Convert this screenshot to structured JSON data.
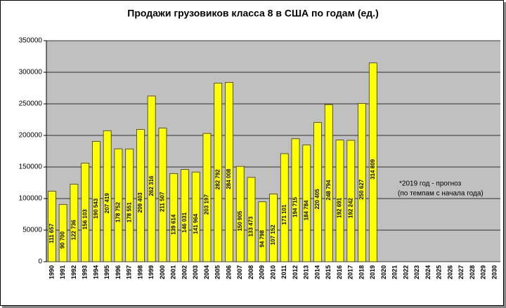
{
  "chart_data": {
    "type": "bar",
    "title": "Продажи грузовиков класса 8 в США по годам (ед.)",
    "categories": [
      "1990",
      "1991",
      "1992",
      "1993",
      "1994",
      "1995",
      "1996",
      "1997",
      "1998",
      "1999",
      "2000",
      "2001",
      "2002",
      "2003",
      "2004",
      "2005",
      "2006",
      "2007",
      "2008",
      "2009",
      "2010",
      "2011",
      "2012",
      "2013",
      "2014",
      "2015",
      "2016",
      "2017",
      "2018",
      "2019",
      "2020",
      "2021",
      "2022",
      "2023",
      "2024",
      "2025",
      "2026",
      "2027",
      "2028",
      "2029",
      "2030"
    ],
    "values": [
      111657,
      90700,
      122736,
      156103,
      190543,
      207419,
      178752,
      178551,
      209403,
      262316,
      211507,
      139614,
      146031,
      141964,
      203197,
      282792,
      284008,
      150905,
      133473,
      94798,
      107152,
      171101,
      194715,
      184784,
      220405,
      248794,
      192691,
      192242,
      250627,
      314809,
      null,
      null,
      null,
      null,
      null,
      null,
      null,
      null,
      null,
      null,
      null
    ],
    "value_labels": [
      "111 657",
      "90 700",
      "122 736",
      "156 103",
      "190 543",
      "207 419",
      "178 752",
      "178 551",
      "209 403",
      "262 316",
      "211 507",
      "139 614",
      "146 031",
      "141 964",
      "203 197",
      "282 792",
      "284 008",
      "150 905",
      "133 473",
      "94 798",
      "107 152",
      "171 101",
      "194 715",
      "184 784",
      "220 405",
      "248 794",
      "192 691",
      "192 242",
      "250 627",
      "314 809",
      null,
      null,
      null,
      null,
      null,
      null,
      null,
      null,
      null,
      null,
      null
    ],
    "color": "#ffff00",
    "ylim": [
      0,
      350000
    ],
    "yticks": [
      0,
      50000,
      100000,
      150000,
      200000,
      250000,
      300000,
      350000
    ],
    "grid": true,
    "annotations": [
      "*2019 год - прогноз",
      "(по темпам с начала года)"
    ]
  }
}
